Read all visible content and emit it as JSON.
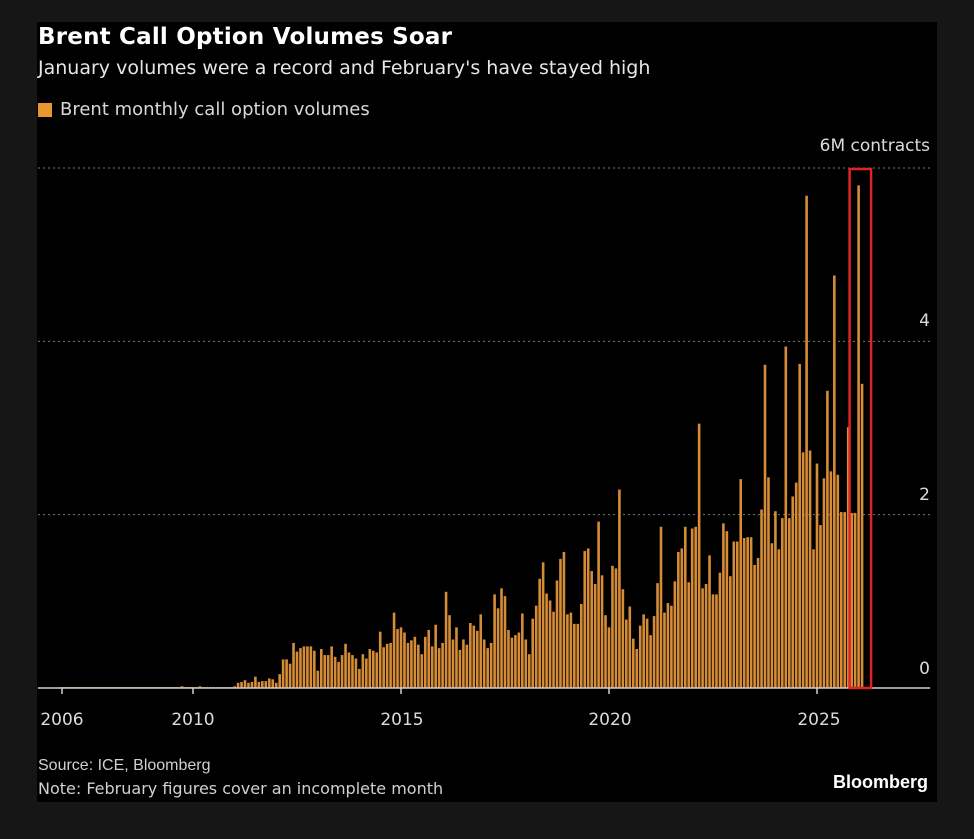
{
  "title": "Brent Call Option Volumes Soar",
  "subtitle": "January volumes were a record and February's have stayed high",
  "legend_label": "Brent monthly call option volumes",
  "source": "Source: ICE, Bloomberg",
  "note": "Note: February figures cover an incomplete month",
  "brand": "Bloomberg",
  "colors": {
    "bar": "#d68c36",
    "highlight_box": "#e02424",
    "background": "#000000"
  },
  "chart_data": {
    "type": "bar",
    "frequency": "monthly",
    "start": "2006-01",
    "unit": "M contracts",
    "y_unit_label": "6M contracts",
    "ylim": [
      0,
      6
    ],
    "y_ticks": [
      "0",
      "2",
      "4",
      "6M contracts"
    ],
    "x_ticks": [
      "2006",
      "2010",
      "2015",
      "2020",
      "2025"
    ],
    "grid": "horizontal dotted",
    "highlight": [
      "2026-01",
      "2026-02"
    ],
    "years": [
      {
        "year": 2006,
        "values": [
          0.01,
          0.01,
          0.01,
          0.01,
          0.01,
          0.01,
          0.01,
          0.01,
          0.01,
          0.01,
          0.01,
          0.01
        ]
      },
      {
        "year": 2007,
        "values": [
          0.01,
          0.01,
          0.01,
          0.01,
          0.01,
          0.01,
          0.01,
          0.01,
          0.01,
          0.01,
          0.01,
          0.01
        ]
      },
      {
        "year": 2008,
        "values": [
          0.01,
          0.01,
          0.01,
          0.01,
          0.01,
          0.01,
          0.01,
          0.01,
          0.01,
          0.01,
          0.01,
          0.01
        ]
      },
      {
        "year": 2009,
        "values": [
          0.01,
          0.01,
          0.01,
          0.01,
          0.01,
          0.01,
          0.01,
          0.01,
          0.02,
          0.01,
          0.01,
          0.01
        ]
      },
      {
        "year": 2010,
        "values": [
          0.01,
          0.01,
          0.02,
          0.01,
          0.01,
          0.01,
          0.01,
          0.01,
          0.01,
          0.01,
          0.01,
          0.01
        ]
      },
      {
        "year": 2011,
        "values": [
          0.02,
          0.06,
          0.07,
          0.09,
          0.06,
          0.07,
          0.13,
          0.07,
          0.08,
          0.08,
          0.11,
          0.1
        ]
      },
      {
        "year": 2012,
        "values": [
          0.06,
          0.16,
          0.33,
          0.33,
          0.28,
          0.52,
          0.42,
          0.46,
          0.48,
          0.48,
          0.48,
          0.43
        ]
      },
      {
        "year": 2013,
        "values": [
          0.2,
          0.45,
          0.38,
          0.38,
          0.48,
          0.36,
          0.3,
          0.38,
          0.51,
          0.41,
          0.38,
          0.34
        ]
      },
      {
        "year": 2014,
        "values": [
          0.22,
          0.39,
          0.34,
          0.45,
          0.43,
          0.41,
          0.65,
          0.47,
          0.51,
          0.52,
          0.87,
          0.68
        ]
      },
      {
        "year": 2015,
        "values": [
          0.7,
          0.64,
          0.52,
          0.55,
          0.59,
          0.5,
          0.39,
          0.59,
          0.67,
          0.48,
          0.73,
          0.46
        ]
      },
      {
        "year": 2016,
        "values": [
          0.52,
          1.11,
          0.84,
          0.56,
          0.7,
          0.44,
          0.56,
          0.5,
          0.75,
          0.72,
          0.66,
          0.85
        ]
      },
      {
        "year": 2017,
        "values": [
          0.56,
          0.46,
          0.52,
          1.08,
          0.92,
          1.15,
          1.06,
          0.67,
          0.58,
          0.61,
          0.64,
          0.86
        ]
      },
      {
        "year": 2018,
        "values": [
          0.56,
          0.39,
          0.8,
          0.95,
          1.26,
          1.45,
          1.09,
          1.01,
          0.88,
          1.24,
          1.49,
          1.57
        ]
      },
      {
        "year": 2019,
        "values": [
          0.85,
          0.87,
          0.74,
          0.74,
          0.97,
          1.58,
          1.61,
          1.35,
          1.2,
          1.92,
          1.3,
          0.84
        ]
      },
      {
        "year": 2020,
        "values": [
          0.7,
          1.41,
          1.38,
          2.29,
          1.14,
          0.79,
          0.94,
          0.57,
          0.45,
          0.72,
          0.85,
          0.8
        ]
      },
      {
        "year": 2021,
        "values": [
          0.61,
          0.83,
          1.21,
          1.86,
          0.87,
          0.98,
          0.95,
          1.23,
          1.57,
          1.61,
          1.86,
          1.22
        ]
      },
      {
        "year": 2022,
        "values": [
          1.84,
          1.86,
          3.05,
          1.15,
          1.2,
          1.53,
          1.08,
          1.08,
          1.33,
          1.9,
          1.81,
          1.29
        ]
      },
      {
        "year": 2023,
        "values": [
          1.69,
          1.69,
          2.41,
          1.73,
          1.74,
          1.74,
          1.42,
          1.5,
          2.06,
          3.73,
          2.43,
          1.67
        ]
      },
      {
        "year": 2024,
        "values": [
          2.04,
          1.6,
          1.96,
          3.94,
          1.96,
          2.21,
          2.37,
          3.74,
          2.72,
          5.68,
          2.74,
          1.6
        ]
      },
      {
        "year": 2025,
        "values": [
          2.59,
          1.88,
          2.42,
          3.43,
          2.5,
          4.76,
          2.46,
          2.03,
          2.03,
          3.01,
          2.02,
          2.02
        ]
      },
      {
        "year": 2026,
        "values": [
          5.8,
          3.51
        ]
      }
    ]
  }
}
